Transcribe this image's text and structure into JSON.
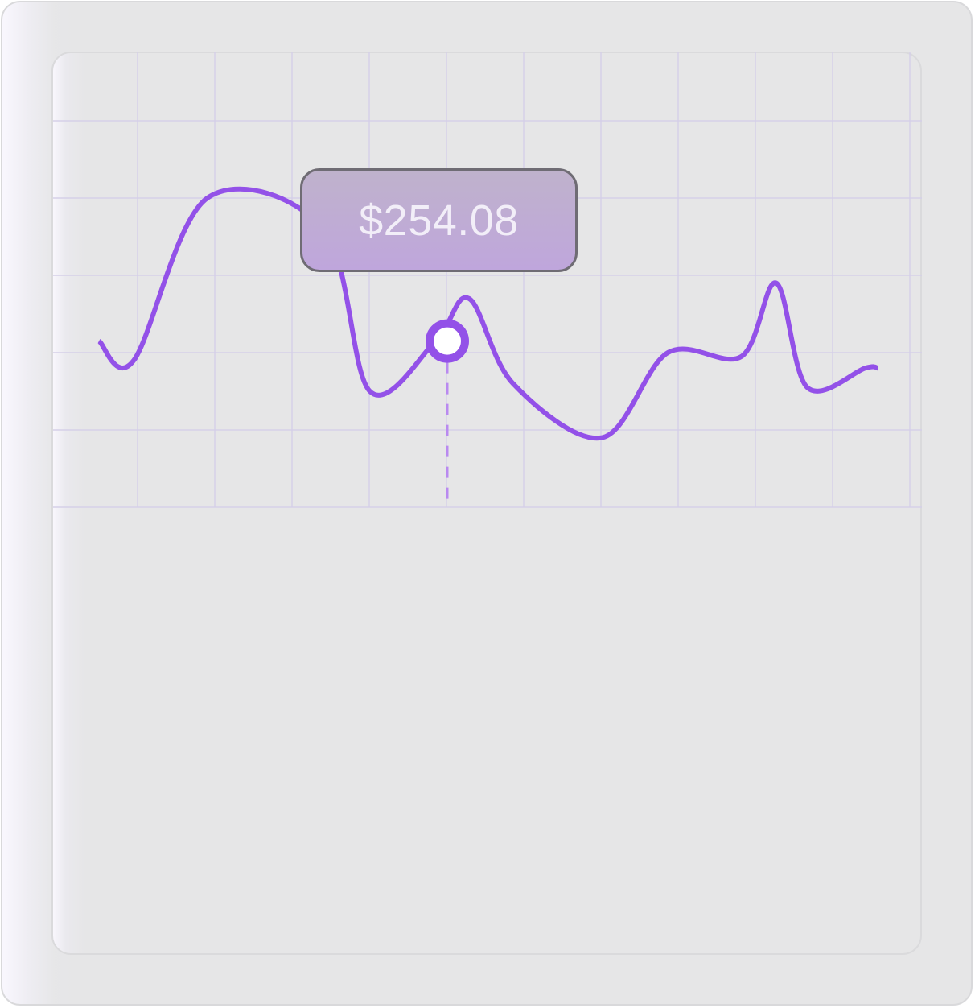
{
  "colors": {
    "line": "#9351E8",
    "grid": "#d5d0e8",
    "tooltip_border": "#6f6c74",
    "card_bg": "#e6e6e7"
  },
  "tooltip": {
    "value": "$254.08"
  },
  "chart_data": {
    "type": "line",
    "title": "",
    "xlabel": "",
    "ylabel": "",
    "grid": true,
    "legend": "none",
    "ylim": [
      0,
      6
    ],
    "xlim": [
      0,
      10.06
    ],
    "x": [
      0,
      0.45,
      1.4,
      2.9,
      3.5,
      4.35,
      4.78,
      5.35,
      6.5,
      7.35,
      8.3,
      8.75,
      9.15,
      9.9,
      10.06
    ],
    "values": [
      2.15,
      1.9,
      4.0,
      3.6,
      1.5,
      2.15,
      2.7,
      1.6,
      0.9,
      2.0,
      1.95,
      2.9,
      1.55,
      1.8,
      1.8
    ],
    "highlight": {
      "x": 4.5,
      "y": 2.15,
      "label": "$254.08"
    }
  }
}
